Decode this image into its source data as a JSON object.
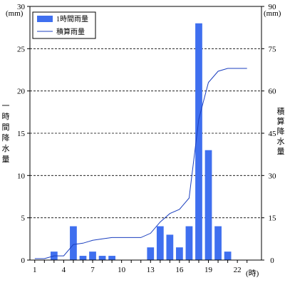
{
  "chart_data": {
    "type": "bar+line",
    "x": [
      1,
      2,
      3,
      4,
      5,
      6,
      7,
      8,
      9,
      10,
      11,
      12,
      13,
      14,
      15,
      16,
      17,
      18,
      19,
      20,
      21,
      22,
      23
    ],
    "x_tick_labels": [
      "1",
      "4",
      "7",
      "10",
      "13",
      "16",
      "19",
      "22"
    ],
    "x_unit": "(時)",
    "left_axis": {
      "unit": "(mm)",
      "label": [
        "一",
        "時",
        "間",
        "降",
        "水",
        "量"
      ],
      "ylim": [
        0,
        30
      ],
      "ticks": [
        0,
        5,
        10,
        15,
        20,
        25,
        30
      ]
    },
    "right_axis": {
      "unit": "(mm)",
      "label": [
        "積",
        "算",
        "降",
        "水",
        "量"
      ],
      "ylim": [
        0,
        90
      ],
      "ticks": [
        0,
        15,
        30,
        45,
        60,
        75,
        90
      ]
    },
    "grid": "dashed horizontal at left-axis ticks",
    "legend_position": "top-left",
    "colors": {
      "bar": "#3f6fef",
      "line": "#1b3fbf",
      "grid": "#000000"
    },
    "series": [
      {
        "name": "1時間雨量",
        "kind": "bar",
        "axis": "left",
        "values": [
          0,
          0,
          1,
          0,
          4,
          0.5,
          1,
          0.5,
          0.5,
          0,
          0,
          0,
          1.5,
          4,
          3,
          1.5,
          4,
          28,
          13,
          4,
          1,
          0,
          0
        ]
      },
      {
        "name": "積算雨量",
        "kind": "line",
        "axis": "right",
        "values": [
          0.5,
          0.5,
          1.5,
          1.5,
          5.5,
          6,
          7,
          7.5,
          8,
          8,
          8,
          8,
          9.5,
          13.5,
          16.5,
          18,
          22,
          50,
          63,
          67,
          68,
          68,
          68
        ]
      }
    ]
  }
}
